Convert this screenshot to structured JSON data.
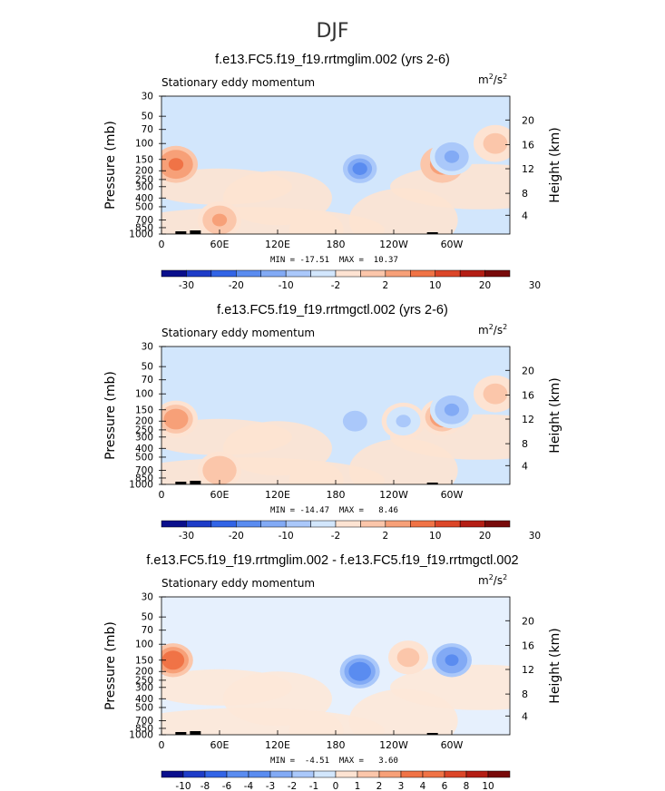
{
  "figure": {
    "title": "DJF"
  },
  "palette_colors": [
    "#0a0f8c",
    "#1e3cc8",
    "#3264e6",
    "#5a8cf0",
    "#82aaf5",
    "#aac8fa",
    "#d2e6fc",
    "#fde3d2",
    "#fbc6aa",
    "#f7a078",
    "#f07346",
    "#dc4628",
    "#b41e14",
    "#780a0a"
  ],
  "chart_data": [
    {
      "type": "heatmap",
      "name": "Stationary eddy momentum",
      "title": "f.e13.FC5.f19_f19.rrtmglim.002 (yrs 2-6)",
      "plot_label": "Stationary eddy momentum",
      "units": {
        "base": "m",
        "exp1": "2",
        "sep": "/s",
        "exp2": "2"
      },
      "xlabel": "",
      "ylabel": "Pressure (mb)",
      "y2label": "Height (km)",
      "x_ticks": [
        "0",
        "60E",
        "120E",
        "180",
        "120W",
        "60W"
      ],
      "y_ticks": [
        "30",
        "50",
        "70",
        "100",
        "150",
        "200",
        "250",
        "300",
        "400",
        "500",
        "700",
        "850",
        "1000"
      ],
      "y2_ticks": [
        "20",
        "16",
        "12",
        "8",
        "4"
      ],
      "min_max_text": "MIN = -17.51  MAX =  10.37",
      "min": -17.51,
      "max": 10.37,
      "colorbar_labels": [
        "-30",
        "-20",
        "-10",
        "-2",
        "2",
        "10",
        "20",
        "30"
      ],
      "features": [
        {
          "lon": 15,
          "p": 170,
          "value": 12,
          "desc": "positive max"
        },
        {
          "lon": 60,
          "p": 700,
          "value": 6
        },
        {
          "lon": 205,
          "p": 190,
          "value": -17,
          "desc": "negative min"
        },
        {
          "lon": 290,
          "p": 170,
          "value": 10
        },
        {
          "lon": 300,
          "p": 140,
          "value": -14
        },
        {
          "lon": 345,
          "p": 100,
          "value": 4
        }
      ]
    },
    {
      "type": "heatmap",
      "name": "Stationary eddy momentum",
      "title": "f.e13.FC5.f19_f19.rrtmgctl.002 (yrs 2-6)",
      "plot_label": "Stationary eddy momentum",
      "units": {
        "base": "m",
        "exp1": "2",
        "sep": "/s",
        "exp2": "2"
      },
      "xlabel": "",
      "ylabel": "Pressure (mb)",
      "y2label": "Height (km)",
      "x_ticks": [
        "0",
        "60E",
        "120E",
        "180",
        "120W",
        "60W"
      ],
      "y_ticks": [
        "30",
        "50",
        "70",
        "100",
        "150",
        "200",
        "250",
        "300",
        "400",
        "500",
        "700",
        "850",
        "1000"
      ],
      "y2_ticks": [
        "20",
        "16",
        "12",
        "8",
        "4"
      ],
      "min_max_text": "MIN = -14.47  MAX =   8.46",
      "min": -14.47,
      "max": 8.46,
      "colorbar_labels": [
        "-30",
        "-20",
        "-10",
        "-2",
        "2",
        "10",
        "20",
        "30"
      ],
      "features": [
        {
          "lon": 15,
          "p": 190,
          "value": 8
        },
        {
          "lon": 60,
          "p": 700,
          "value": 5
        },
        {
          "lon": 200,
          "p": 200,
          "value": -8
        },
        {
          "lon": 250,
          "p": 200,
          "value": -6
        },
        {
          "lon": 290,
          "p": 180,
          "value": 8,
          "desc": "positive max"
        },
        {
          "lon": 300,
          "p": 150,
          "value": -14,
          "desc": "negative min"
        },
        {
          "lon": 345,
          "p": 100,
          "value": 4
        }
      ]
    },
    {
      "type": "heatmap",
      "name": "Stationary eddy momentum",
      "title": "f.e13.FC5.f19_f19.rrtmglim.002 - f.e13.FC5.f19_f19.rrtmgctl.002",
      "plot_label": "Stationary eddy momentum",
      "units": {
        "base": "m",
        "exp1": "2",
        "sep": "/s",
        "exp2": "2"
      },
      "xlabel": "",
      "ylabel": "Pressure (mb)",
      "y2label": "Height (km)",
      "x_ticks": [
        "0",
        "60E",
        "120E",
        "180",
        "120W",
        "60W"
      ],
      "y_ticks": [
        "30",
        "50",
        "70",
        "100",
        "150",
        "200",
        "250",
        "300",
        "400",
        "500",
        "700",
        "850",
        "1000"
      ],
      "y2_ticks": [
        "20",
        "16",
        "12",
        "8",
        "4"
      ],
      "min_max_text": "MIN =  -4.51  MAX =   3.60",
      "min": -4.51,
      "max": 3.6,
      "colorbar_labels": [
        "-10",
        "-8",
        "-6",
        "-4",
        "-3",
        "-2",
        "-1",
        "0",
        "1",
        "2",
        "3",
        "4",
        "6",
        "8",
        "10"
      ],
      "features": [
        {
          "lon": 12,
          "p": 150,
          "value": 3.6,
          "desc": "positive max"
        },
        {
          "lon": 205,
          "p": 200,
          "value": -4.5,
          "desc": "negative min"
        },
        {
          "lon": 300,
          "p": 150,
          "value": -3.5
        },
        {
          "lon": 255,
          "p": 140,
          "value": 1.5
        }
      ]
    }
  ]
}
